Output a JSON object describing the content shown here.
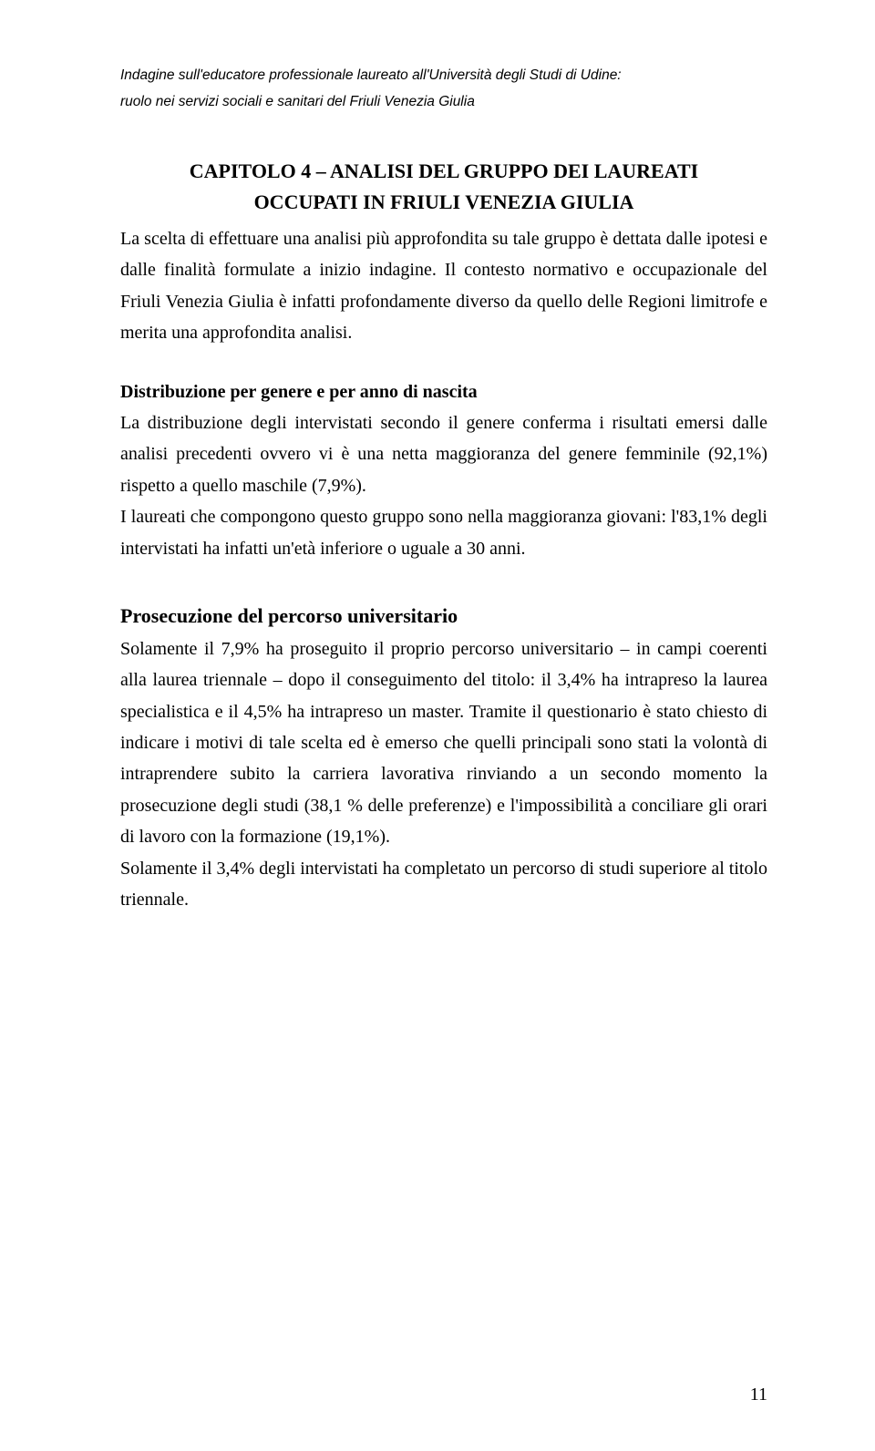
{
  "header": {
    "line1": "Indagine sull'educatore professionale laureato all'Università degli Studi di Udine:",
    "line2": "ruolo nei servizi sociali e sanitari del Friuli Venezia Giulia"
  },
  "chapter": {
    "title_line1": "CAPITOLO 4 – ANALISI DEL GRUPPO DEI LAUREATI",
    "title_line2": "OCCUPATI IN FRIULI VENEZIA GIULIA"
  },
  "intro_paragraph": "La scelta di effettuare una analisi più approfondita su tale gruppo è dettata dalle ipotesi e dalle finalità formulate a inizio indagine. Il contesto normativo e occupazionale del Friuli Venezia Giulia è infatti profondamente diverso da quello delle Regioni limitrofe e merita una approfondita analisi.",
  "section1": {
    "heading": "Distribuzione per genere e per anno di nascita",
    "p1": "La distribuzione degli intervistati secondo il genere conferma i risultati emersi dalle analisi precedenti ovvero vi è una netta maggioranza del genere femminile (92,1%) rispetto a quello maschile (7,9%).",
    "p2": "I laureati che compongono questo gruppo sono nella maggioranza giovani: l'83,1% degli intervistati ha infatti un'età inferiore o uguale a 30 anni."
  },
  "section2": {
    "heading": "Prosecuzione del percorso universitario",
    "p1": "Solamente il 7,9% ha proseguito il proprio percorso universitario – in campi coerenti alla laurea triennale – dopo il conseguimento del titolo: il 3,4% ha intrapreso la laurea specialistica e il 4,5% ha intrapreso un master. Tramite il questionario è stato chiesto di indicare i motivi di tale scelta ed è emerso che quelli principali sono stati la volontà di intraprendere subito la carriera lavorativa rinviando a un secondo momento la prosecuzione degli studi (38,1 % delle preferenze) e l'impossibilità a conciliare gli orari di lavoro con la formazione (19,1%).",
    "p2": "Solamente il 3,4% degli intervistati ha completato un percorso di studi superiore al titolo triennale."
  },
  "page_number": "11"
}
